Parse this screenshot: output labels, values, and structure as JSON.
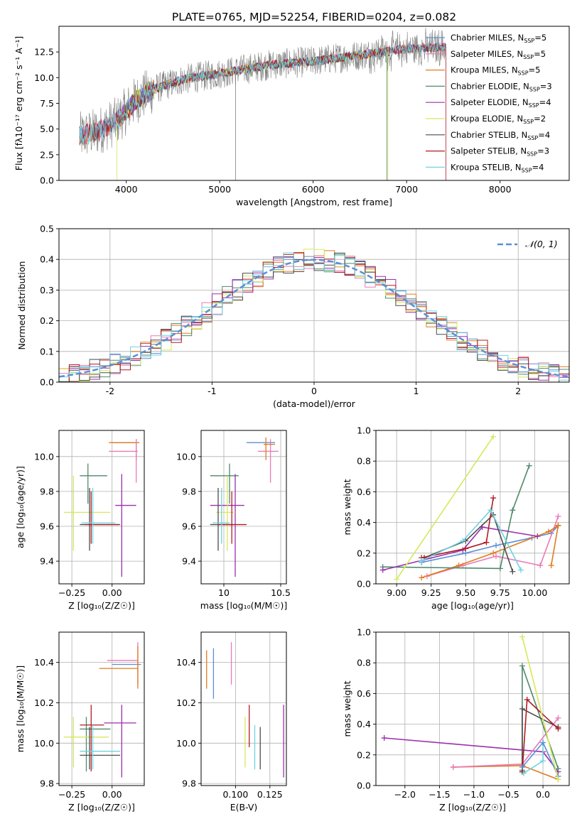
{
  "figure_title": "PLATE=0765, MJD=52254, FIBERID=0204, z=0.082",
  "colors": {
    "Chabrier MILES": "#5b8fd6",
    "Salpeter MILES": "#ea7ab8",
    "Kroupa MILES": "#e07b1f",
    "Chabrier ELODIE": "#4f8a6a",
    "Salpeter ELODIE": "#9b2fae",
    "Kroupa ELODIE": "#d7e85a",
    "Chabrier STELIB": "#4d4d4d",
    "Salpeter STELIB": "#b01d24",
    "Kroupa STELIB": "#6fd3e0",
    "data": "#808080",
    "normal": "#5b8fd6"
  },
  "chart_data": [
    {
      "id": "spectrum",
      "type": "line",
      "xlabel": "wavelength [Angstrom, rest frame]",
      "ylabel": "Flux [f_λ 10^-17 erg cm^-2 s^-1 A^-1]",
      "xlim": [
        3280,
        8740
      ],
      "ylim": [
        0,
        15
      ],
      "xticks": [
        4000,
        5000,
        6000,
        7000,
        8000
      ],
      "yticks": [
        0.0,
        2.5,
        5.0,
        7.5,
        10.0,
        12.5
      ],
      "legend_position": "upper-right",
      "continuum": {
        "x": [
          3500,
          3700,
          3900,
          4100,
          4300,
          4600,
          5000,
          5500,
          6000,
          6500,
          7000,
          7400
        ],
        "y": [
          4.3,
          4.8,
          5.8,
          7.8,
          8.9,
          9.8,
          10.4,
          11.2,
          11.6,
          12.2,
          12.8,
          13.0
        ]
      },
      "series": [
        {
          "name": "Chabrier MILES",
          "nssp": "5"
        },
        {
          "name": "Salpeter MILES",
          "nssp": "5"
        },
        {
          "name": "Kroupa MILES",
          "nssp": "5"
        },
        {
          "name": "Chabrier ELODIE",
          "nssp": "3"
        },
        {
          "name": "Salpeter ELODIE",
          "nssp": "4"
        },
        {
          "name": "Kroupa ELODIE",
          "nssp": "2"
        },
        {
          "name": "Chabrier STELIB",
          "nssp": "4"
        },
        {
          "name": "Salpeter STELIB",
          "nssp": "3"
        },
        {
          "name": "Kroupa STELIB",
          "nssp": "4"
        }
      ]
    },
    {
      "id": "residuals",
      "type": "line",
      "xlabel": "(data-model)/error",
      "ylabel": "Normed distribution",
      "xlim": [
        -2.5,
        2.5
      ],
      "ylim": [
        0,
        0.5
      ],
      "xticks": [
        -2,
        -1,
        0,
        1,
        2
      ],
      "yticks": [
        0.0,
        0.1,
        0.2,
        0.3,
        0.4,
        0.5
      ],
      "grid": true,
      "legend_position": "upper-right",
      "legend_label": "N(0,1)",
      "bins": {
        "start": -2.5,
        "width": 0.1,
        "count": 50
      }
    },
    {
      "id": "age_vs_Z",
      "type": "scatter",
      "xlabel": "Z [log10(Z/Z☉)]",
      "ylabel": "age [log10(age/yr)]",
      "xlim": [
        -0.33,
        0.2
      ],
      "ylim": [
        9.27,
        10.15
      ],
      "xticks": [
        -0.25,
        0.0
      ],
      "xticklabels": [
        "−0.25",
        "0.00"
      ],
      "yticks": [
        9.4,
        9.6,
        9.8,
        10.0
      ],
      "grid": true,
      "crosses": [
        {
          "s": "Chabrier MILES",
          "x": [
            0.0,
            0.16
          ],
          "y": [
            10.08,
            10.08
          ]
        },
        {
          "s": "Salpeter MILES",
          "x": [
            -0.02,
            0.16
          ],
          "y": [
            10.03,
            10.03
          ]
        },
        {
          "s": "Kroupa MILES",
          "x": [
            -0.02,
            0.17
          ],
          "y": [
            10.08,
            10.08
          ],
          "vx": 0.15,
          "vy": [
            9.98,
            10.1
          ]
        },
        {
          "s": "Chabrier ELODIE",
          "x": [
            -0.2,
            -0.03
          ],
          "y": [
            9.89,
            9.89
          ],
          "vx": -0.15,
          "vy": [
            9.73,
            9.96
          ]
        },
        {
          "s": "Salpeter ELODIE",
          "x": [
            0.02,
            0.15
          ],
          "y": [
            9.72,
            9.72
          ],
          "vx": 0.06,
          "vy": [
            9.31,
            9.9
          ]
        },
        {
          "s": "Kroupa ELODIE",
          "x": [
            -0.3,
            -0.01
          ],
          "y": [
            9.68,
            9.68
          ],
          "vx": -0.24,
          "vy": [
            9.46,
            9.89
          ]
        },
        {
          "s": "Chabrier STELIB",
          "x": [
            -0.2,
            0.05
          ],
          "y": [
            9.61,
            9.61
          ],
          "vx": -0.14,
          "vy": [
            9.46,
            9.82
          ]
        },
        {
          "s": "Salpeter STELIB",
          "x": [
            -0.17,
            0.04
          ],
          "y": [
            9.61,
            9.61
          ],
          "vx": -0.13,
          "vy": [
            9.5,
            9.8
          ]
        },
        {
          "s": "Kroupa STELIB",
          "x": [
            -0.19,
            0.02
          ],
          "y": [
            9.62,
            9.62
          ],
          "vx": -0.12,
          "vy": [
            9.5,
            9.82
          ]
        },
        {
          "s": "Salpeter MILES",
          "x": [
            0.15,
            0.15
          ],
          "y": [
            9.85,
            10.1
          ]
        }
      ]
    },
    {
      "id": "age_vs_mass",
      "type": "scatter",
      "xlabel": "mass [log10(M/M☉)]",
      "ylabel": "",
      "xlim": [
        9.8,
        10.55
      ],
      "ylim": [
        9.27,
        10.15
      ],
      "xticks": [
        10.0,
        10.5
      ],
      "yticks": [
        9.4,
        9.6,
        9.8,
        10.0
      ],
      "grid": true,
      "crosses": [
        {
          "s": "Chabrier MILES",
          "x": [
            10.2,
            10.45
          ],
          "y": [
            10.08,
            10.08
          ]
        },
        {
          "s": "Salpeter MILES",
          "x": [
            10.3,
            10.48
          ],
          "y": [
            10.03,
            10.03
          ],
          "vx": 10.41,
          "vy": [
            9.85,
            10.1
          ]
        },
        {
          "s": "Kroupa MILES",
          "x": [
            10.35,
            10.45
          ],
          "y": [
            10.07,
            10.07
          ],
          "vx": 10.37,
          "vy": [
            9.98,
            10.11
          ]
        },
        {
          "s": "Chabrier ELODIE",
          "x": [
            9.88,
            10.13
          ],
          "y": [
            9.89,
            9.89
          ],
          "vx": 10.05,
          "vy": [
            9.73,
            9.96
          ]
        },
        {
          "s": "Salpeter ELODIE",
          "x": [
            9.88,
            10.18
          ],
          "y": [
            9.72,
            9.72
          ],
          "vx": 10.1,
          "vy": [
            9.31,
            9.9
          ]
        },
        {
          "s": "Kroupa ELODIE",
          "x": [
            9.93,
            10.1
          ],
          "y": [
            9.68,
            9.68
          ],
          "vx": 10.03,
          "vy": [
            9.46,
            9.89
          ]
        },
        {
          "s": "Chabrier STELIB",
          "x": [
            9.88,
            10.08
          ],
          "y": [
            9.61,
            9.61
          ],
          "vx": 9.95,
          "vy": [
            9.46,
            9.82
          ]
        },
        {
          "s": "Salpeter STELIB",
          "x": [
            9.95,
            10.2
          ],
          "y": [
            9.61,
            9.61
          ],
          "vx": 10.07,
          "vy": [
            9.5,
            9.8
          ]
        },
        {
          "s": "Kroupa STELIB",
          "x": [
            9.9,
            10.05
          ],
          "y": [
            9.62,
            9.62
          ],
          "vx": 9.98,
          "vy": [
            9.5,
            9.82
          ]
        }
      ]
    },
    {
      "id": "weight_vs_age",
      "type": "line",
      "xlabel": "age [log10(age/yr)]",
      "ylabel": "mass weight",
      "xlim": [
        8.85,
        10.25
      ],
      "ylim": [
        0,
        1.0
      ],
      "xticks": [
        9.0,
        9.25,
        9.5,
        9.75,
        10.0
      ],
      "xticklabels": [
        "9.00",
        "9.25",
        "9.50",
        "9.75",
        "10.00"
      ],
      "yticks": [
        0.0,
        0.2,
        0.4,
        0.6,
        0.8,
        1.0
      ],
      "grid": true,
      "series": [
        {
          "s": "Chabrier MILES",
          "x": [
            9.18,
            9.5,
            9.72,
            9.98,
            10.12,
            10.17
          ],
          "y": [
            0.14,
            0.2,
            0.25,
            0.3,
            0.33,
            0.38
          ]
        },
        {
          "s": "Salpeter MILES",
          "x": [
            9.22,
            9.48,
            9.72,
            10.04,
            10.17
          ],
          "y": [
            0.05,
            0.12,
            0.18,
            0.12,
            0.44
          ]
        },
        {
          "s": "Kroupa MILES",
          "x": [
            9.18,
            9.45,
            9.7,
            10.1,
            10.17
          ],
          "y": [
            0.04,
            0.12,
            0.2,
            0.34,
            0.38
          ]
        },
        {
          "s": "Chabrier ELODIE",
          "x": [
            8.9,
            9.75,
            9.84,
            9.96
          ],
          "y": [
            0.11,
            0.1,
            0.48,
            0.77
          ]
        },
        {
          "s": "Salpeter ELODIE",
          "x": [
            8.9,
            9.48,
            9.62,
            10.02
          ],
          "y": [
            0.09,
            0.22,
            0.37,
            0.31
          ]
        },
        {
          "s": "Kroupa ELODIE",
          "x": [
            9.0,
            9.7
          ],
          "y": [
            0.03,
            0.96
          ]
        },
        {
          "s": "Chabrier STELIB",
          "x": [
            9.2,
            9.5,
            9.7,
            9.84
          ],
          "y": [
            0.17,
            0.28,
            0.45,
            0.08
          ]
        },
        {
          "s": "Salpeter STELIB",
          "x": [
            9.18,
            9.5,
            9.65,
            9.7
          ],
          "y": [
            0.17,
            0.23,
            0.27,
            0.56
          ]
        },
        {
          "s": "Kroupa STELIB",
          "x": [
            9.18,
            9.48,
            9.68,
            9.9
          ],
          "y": [
            0.15,
            0.28,
            0.48,
            0.09
          ]
        },
        {
          "s": "Kroupa MILES",
          "x": [
            10.12,
            10.17
          ],
          "y": [
            0.12,
            0.38
          ]
        }
      ]
    },
    {
      "id": "mass_vs_Z",
      "type": "scatter",
      "xlabel": "Z [log10(Z/Z☉)]",
      "ylabel": "mass [log10(M/M☉)]",
      "xlim": [
        -0.33,
        0.2
      ],
      "ylim": [
        9.79,
        10.55
      ],
      "xticks": [
        -0.25,
        0.0
      ],
      "xticklabels": [
        "−0.25",
        "0.00"
      ],
      "yticks": [
        9.8,
        10.0,
        10.2,
        10.4
      ],
      "grid": true,
      "crosses": [
        {
          "s": "Chabrier MILES",
          "x": [
            0.0,
            0.18
          ],
          "y": [
            10.39,
            10.39
          ]
        },
        {
          "s": "Salpeter MILES",
          "x": [
            -0.03,
            0.16
          ],
          "y": [
            10.41,
            10.41
          ],
          "vx": 0.16,
          "vy": [
            10.29,
            10.5
          ]
        },
        {
          "s": "Kroupa MILES",
          "x": [
            -0.08,
            0.16
          ],
          "y": [
            10.37,
            10.37
          ],
          "vx": 0.16,
          "vy": [
            10.27,
            10.48
          ]
        },
        {
          "s": "Chabrier ELODIE",
          "x": [
            -0.2,
            -0.01
          ],
          "y": [
            10.07,
            10.07
          ],
          "vx": -0.16,
          "vy": [
            9.86,
            10.13
          ]
        },
        {
          "s": "Salpeter ELODIE",
          "x": [
            -0.05,
            0.15
          ],
          "y": [
            10.1,
            10.1
          ],
          "vx": 0.06,
          "vy": [
            9.83,
            10.19
          ]
        },
        {
          "s": "Kroupa ELODIE",
          "x": [
            -0.3,
            -0.02
          ],
          "y": [
            10.03,
            10.03
          ],
          "vx": -0.24,
          "vy": [
            9.88,
            10.13
          ]
        },
        {
          "s": "Chabrier STELIB",
          "x": [
            -0.2,
            0.05
          ],
          "y": [
            9.94,
            9.94
          ],
          "vx": -0.14,
          "vy": [
            9.87,
            10.08
          ]
        },
        {
          "s": "Salpeter STELIB",
          "x": [
            -0.2,
            -0.05
          ],
          "y": [
            10.09,
            10.09
          ],
          "vx": -0.13,
          "vy": [
            9.86,
            10.19
          ]
        },
        {
          "s": "Kroupa STELIB",
          "x": [
            -0.2,
            0.05
          ],
          "y": [
            9.96,
            9.96
          ],
          "vx": -0.12,
          "vy": [
            9.87,
            10.09
          ]
        }
      ]
    },
    {
      "id": "mass_vs_ebv",
      "type": "scatter",
      "xlabel": "E(B-V)",
      "ylabel": "",
      "xlim": [
        0.075,
        0.137
      ],
      "ylim": [
        9.79,
        10.55
      ],
      "xticks": [
        0.1,
        0.125
      ],
      "xticklabels": [
        "0.100",
        "0.125"
      ],
      "yticks": [
        9.8,
        10.0,
        10.2,
        10.4
      ],
      "grid": true,
      "crosses": [
        {
          "s": "Kroupa MILES",
          "vx": 0.079,
          "vy": [
            10.27,
            10.46
          ]
        },
        {
          "s": "Chabrier MILES",
          "vx": 0.084,
          "vy": [
            10.22,
            10.47
          ]
        },
        {
          "s": "Salpeter MILES",
          "vx": 0.097,
          "vy": [
            10.29,
            10.5
          ]
        },
        {
          "s": "Kroupa ELODIE",
          "vx": 0.107,
          "vy": [
            9.88,
            10.13
          ]
        },
        {
          "s": "Salpeter STELIB",
          "vx": 0.11,
          "vy": [
            9.98,
            10.19
          ]
        },
        {
          "s": "Kroupa STELIB",
          "vx": 0.114,
          "vy": [
            9.87,
            10.09
          ]
        },
        {
          "s": "Chabrier STELIB",
          "vx": 0.118,
          "vy": [
            9.87,
            10.08
          ]
        },
        {
          "s": "Salpeter ELODIE",
          "vx": 0.135,
          "vy": [
            9.83,
            10.19
          ]
        }
      ]
    },
    {
      "id": "weight_vs_Z",
      "type": "line",
      "xlabel": "Z [log10(Z/Z☉)]",
      "ylabel": "mass weight",
      "xlim": [
        -2.42,
        0.38
      ],
      "ylim": [
        0,
        1.0
      ],
      "xticks": [
        -2.0,
        -1.5,
        -1.0,
        -0.5,
        0.0
      ],
      "xticklabels": [
        "−2.0",
        "−1.5",
        "−1.0",
        "−0.5",
        "0.0"
      ],
      "yticks": [
        0.0,
        0.2,
        0.4,
        0.6,
        0.8,
        1.0
      ],
      "grid": true,
      "series": [
        {
          "s": "Salpeter ELODIE",
          "x": [
            -2.3,
            0.0,
            0.22
          ],
          "y": [
            0.31,
            0.22,
            0.09
          ]
        },
        {
          "s": "Kroupa MILES",
          "x": [
            -1.3,
            -0.3,
            0.22
          ],
          "y": [
            0.12,
            0.13,
            0.04
          ]
        },
        {
          "s": "Salpeter MILES",
          "x": [
            -1.3,
            -0.3,
            0.22
          ],
          "y": [
            0.12,
            0.14,
            0.44
          ]
        },
        {
          "s": "Chabrier ELODIE",
          "x": [
            -0.3,
            -0.3,
            0.22
          ],
          "y": [
            0.1,
            0.78,
            0.11
          ]
        },
        {
          "s": "Chabrier STELIB",
          "x": [
            -0.3,
            -0.3,
            0.22
          ],
          "y": [
            0.09,
            0.5,
            0.38
          ]
        },
        {
          "s": "Salpeter STELIB",
          "x": [
            -0.3,
            -0.23,
            0.22
          ],
          "y": [
            0.09,
            0.56,
            0.37
          ]
        },
        {
          "s": "Kroupa STELIB",
          "x": [
            -0.28,
            0.0,
            0.0
          ],
          "y": [
            0.08,
            0.16,
            0.28
          ]
        },
        {
          "s": "Chabrier MILES",
          "x": [
            -0.3,
            0.0,
            0.22
          ],
          "y": [
            0.12,
            0.28,
            0.06
          ]
        },
        {
          "s": "Kroupa ELODIE",
          "x": [
            -0.3,
            0.22
          ],
          "y": [
            0.97,
            0.04
          ]
        }
      ]
    }
  ]
}
